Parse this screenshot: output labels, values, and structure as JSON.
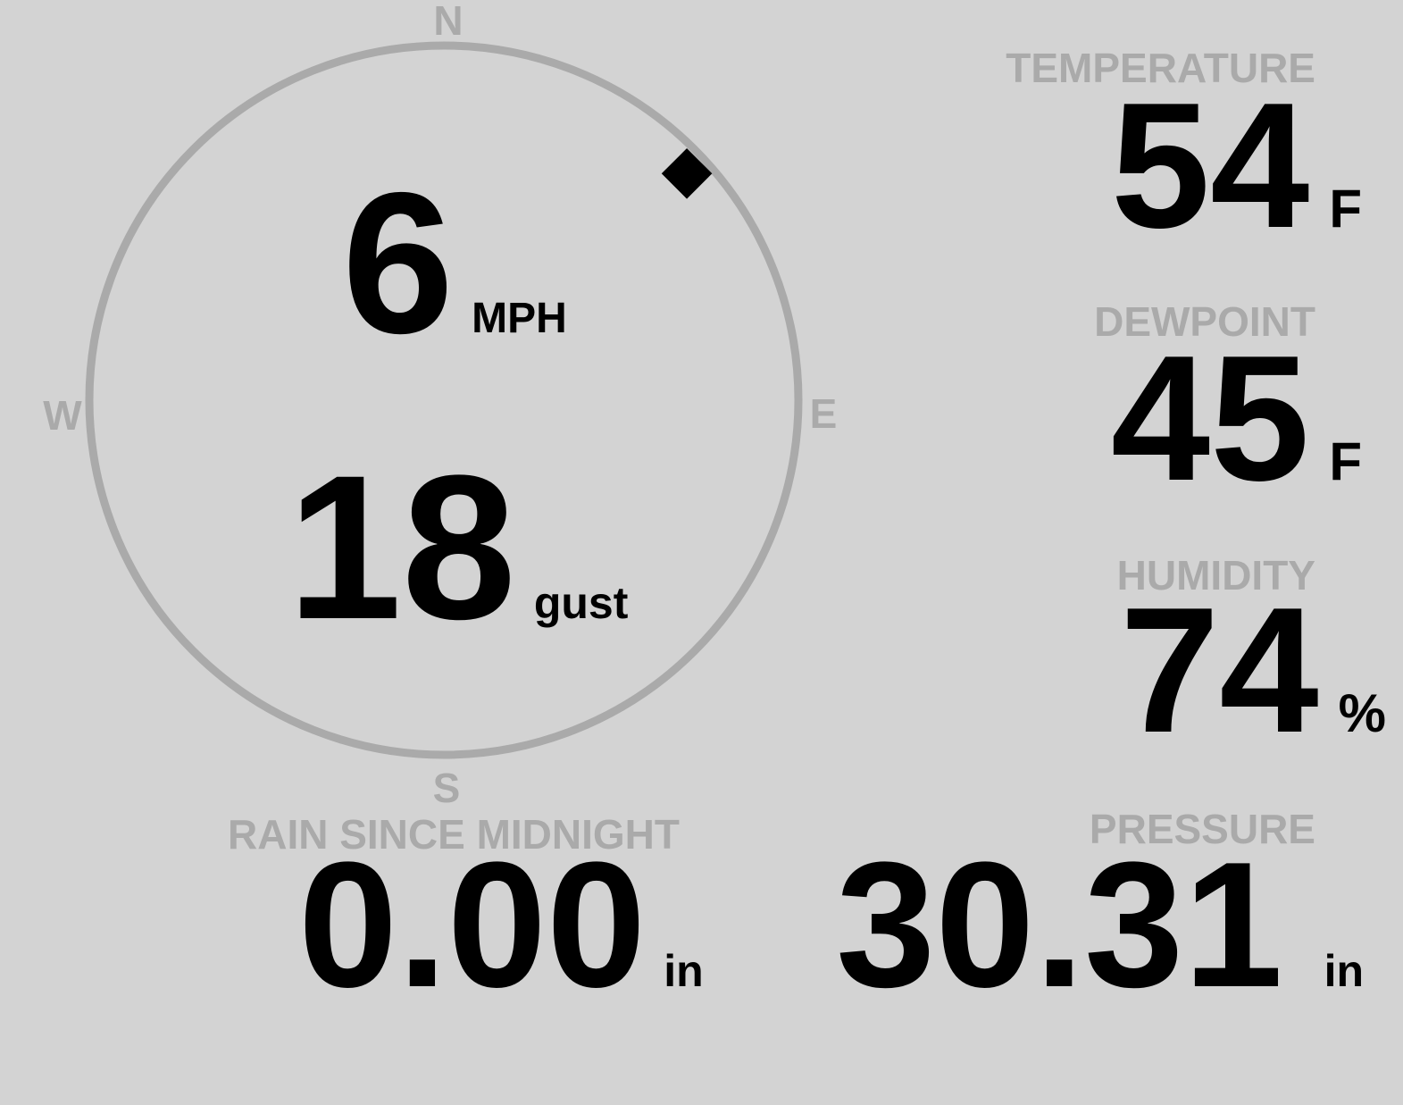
{
  "colors": {
    "background": "#d3d3d3",
    "label": "#aaaaaa",
    "value": "#000000",
    "ring": "#aaaaaa"
  },
  "wind": {
    "compass": {
      "north": "N",
      "east": "E",
      "south": "S",
      "west": "W"
    },
    "direction_degrees": 47,
    "direction_icon": "diamond-marker",
    "speed": "6",
    "speed_unit": "MPH",
    "gust": "18",
    "gust_unit": "gust"
  },
  "temperature": {
    "label": "TEMPERATURE",
    "value": "54",
    "unit": "F"
  },
  "dewpoint": {
    "label": "DEWPOINT",
    "value": "45",
    "unit": "F"
  },
  "humidity": {
    "label": "HUMIDITY",
    "value": "74",
    "unit": "%"
  },
  "rain": {
    "label": "RAIN SINCE MIDNIGHT",
    "value": "0.00",
    "unit": "in"
  },
  "pressure": {
    "label": "PRESSURE",
    "value": "30.31",
    "unit": "in"
  }
}
